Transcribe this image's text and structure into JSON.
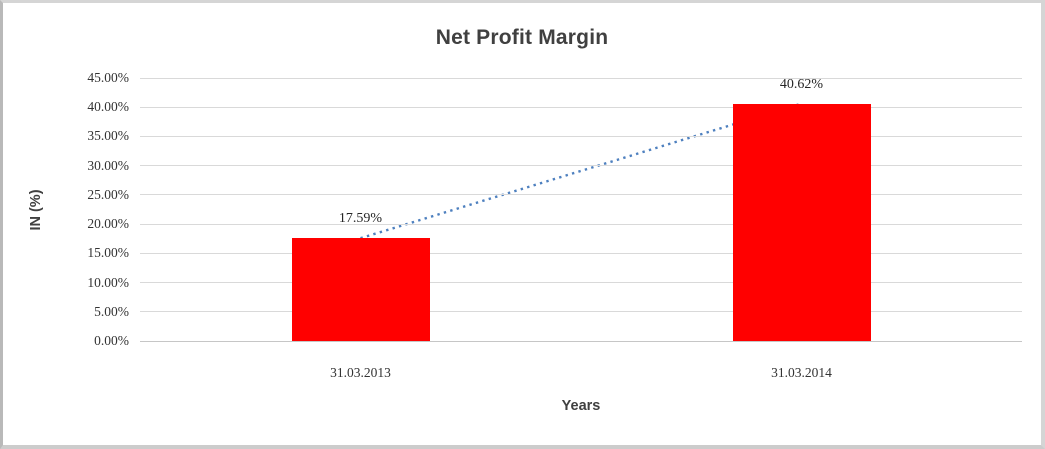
{
  "window": {
    "background": "#FFFFFF",
    "border_color": "#CFCFCF"
  },
  "chart": {
    "title": "Net Profit Margin",
    "x_axis_title": "Years",
    "y_axis_title": "IN (%)"
  },
  "chart_data": {
    "type": "bar",
    "title": "Net Profit Margin",
    "xlabel": "Years",
    "ylabel": "IN (%)",
    "categories": [
      "31.03.2013",
      "31.03.2014"
    ],
    "values": [
      17.59,
      40.62
    ],
    "data_labels": [
      "17.59%",
      "40.62%"
    ],
    "y_ticks": [
      "0.00%",
      "5.00%",
      "10.00%",
      "15.00%",
      "20.00%",
      "25.00%",
      "30.00%",
      "35.00%",
      "40.00%",
      "45.00%"
    ],
    "ylim": [
      0,
      45
    ],
    "grid": true,
    "legend": "none",
    "bar_color": "#FF0000",
    "gridline_color": "#D9D9D9",
    "axis_line_color": "#C6C6C6",
    "tick_text_color": "#333333",
    "title_color": "#404040",
    "trendline": {
      "type": "linear",
      "style": "dotted",
      "color": "#4E80BF",
      "connects_values": [
        17.59,
        40.62
      ]
    }
  }
}
